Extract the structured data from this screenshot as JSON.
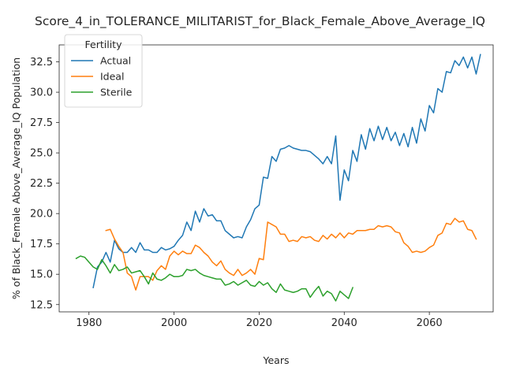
{
  "chart_data": {
    "type": "line",
    "title": "Score_4_in_TOLERANCE_MILITARIST_for_Black_Female_Above_Average_IQ",
    "xlabel": "Years",
    "ylabel": "% of Black_Female Above_Average_IQ Population",
    "xlim": [
      1973,
      2075
    ],
    "ylim": [
      11.9,
      33.9
    ],
    "xticks": [
      1980,
      2000,
      2020,
      2040,
      2060
    ],
    "yticks": [
      12.5,
      15.0,
      17.5,
      20.0,
      22.5,
      25.0,
      27.5,
      30.0,
      32.5
    ],
    "grid": false,
    "legend": {
      "title": "Fertility",
      "placement": "top-left"
    },
    "series": [
      {
        "name": "Actual",
        "color": "#1f77b4",
        "points": [
          [
            1981,
            13.9
          ],
          [
            1982,
            15.6
          ],
          [
            1983,
            16.0
          ],
          [
            1984,
            16.8
          ],
          [
            1985,
            16.0
          ],
          [
            1986,
            17.8
          ],
          [
            1987,
            17.1
          ],
          [
            1988,
            16.8
          ],
          [
            1989,
            16.8
          ],
          [
            1990,
            17.2
          ],
          [
            1991,
            16.8
          ],
          [
            1992,
            17.6
          ],
          [
            1993,
            17.0
          ],
          [
            1994,
            17.0
          ],
          [
            1995,
            16.8
          ],
          [
            1996,
            16.8
          ],
          [
            1997,
            17.2
          ],
          [
            1998,
            17.0
          ],
          [
            1999,
            17.1
          ],
          [
            2000,
            17.3
          ],
          [
            2001,
            17.8
          ],
          [
            2002,
            18.2
          ],
          [
            2003,
            19.3
          ],
          [
            2004,
            18.6
          ],
          [
            2005,
            20.2
          ],
          [
            2006,
            19.3
          ],
          [
            2007,
            20.4
          ],
          [
            2008,
            19.8
          ],
          [
            2009,
            19.9
          ],
          [
            2010,
            19.4
          ],
          [
            2011,
            19.4
          ],
          [
            2012,
            18.6
          ],
          [
            2013,
            18.3
          ],
          [
            2014,
            18.0
          ],
          [
            2015,
            18.1
          ],
          [
            2016,
            18.0
          ],
          [
            2017,
            18.9
          ],
          [
            2018,
            19.5
          ],
          [
            2019,
            20.4
          ],
          [
            2020,
            20.7
          ],
          [
            2021,
            23.0
          ],
          [
            2022,
            22.9
          ],
          [
            2023,
            24.7
          ],
          [
            2024,
            24.3
          ],
          [
            2025,
            25.3
          ],
          [
            2026,
            25.4
          ],
          [
            2027,
            25.6
          ],
          [
            2028,
            25.4
          ],
          [
            2029,
            25.3
          ],
          [
            2030,
            25.2
          ],
          [
            2031,
            25.2
          ],
          [
            2032,
            25.1
          ],
          [
            2033,
            24.8
          ],
          [
            2034,
            24.5
          ],
          [
            2035,
            24.1
          ],
          [
            2036,
            24.7
          ],
          [
            2037,
            24.1
          ],
          [
            2038,
            26.4
          ],
          [
            2039,
            21.1
          ],
          [
            2040,
            23.6
          ],
          [
            2041,
            22.7
          ],
          [
            2042,
            25.2
          ],
          [
            2043,
            24.3
          ],
          [
            2044,
            26.5
          ],
          [
            2045,
            25.3
          ],
          [
            2046,
            27.0
          ],
          [
            2047,
            26.0
          ],
          [
            2048,
            27.2
          ],
          [
            2049,
            26.1
          ],
          [
            2050,
            27.1
          ],
          [
            2051,
            26.0
          ],
          [
            2052,
            26.7
          ],
          [
            2053,
            25.6
          ],
          [
            2054,
            26.6
          ],
          [
            2055,
            25.5
          ],
          [
            2056,
            27.1
          ],
          [
            2057,
            25.8
          ],
          [
            2058,
            27.8
          ],
          [
            2059,
            26.8
          ],
          [
            2060,
            28.9
          ],
          [
            2061,
            28.3
          ],
          [
            2062,
            30.3
          ],
          [
            2063,
            30.0
          ],
          [
            2064,
            31.7
          ],
          [
            2065,
            31.6
          ],
          [
            2066,
            32.6
          ],
          [
            2067,
            32.2
          ],
          [
            2068,
            32.9
          ],
          [
            2069,
            32.0
          ],
          [
            2070,
            32.9
          ],
          [
            2071,
            31.5
          ],
          [
            2072,
            33.1
          ]
        ]
      },
      {
        "name": "Ideal",
        "color": "#ff7f0e",
        "points": [
          [
            1984,
            18.6
          ],
          [
            1985,
            18.7
          ],
          [
            1986,
            17.9
          ],
          [
            1987,
            17.3
          ],
          [
            1988,
            16.8
          ],
          [
            1989,
            15.1
          ],
          [
            1990,
            14.8
          ],
          [
            1991,
            13.7
          ],
          [
            1992,
            14.8
          ],
          [
            1993,
            14.8
          ],
          [
            1994,
            14.8
          ],
          [
            1995,
            14.5
          ],
          [
            1996,
            15.3
          ],
          [
            1997,
            15.7
          ],
          [
            1998,
            15.4
          ],
          [
            1999,
            16.5
          ],
          [
            2000,
            16.9
          ],
          [
            2001,
            16.6
          ],
          [
            2002,
            16.9
          ],
          [
            2003,
            16.7
          ],
          [
            2004,
            16.7
          ],
          [
            2005,
            17.4
          ],
          [
            2006,
            17.2
          ],
          [
            2007,
            16.8
          ],
          [
            2008,
            16.5
          ],
          [
            2009,
            16.0
          ],
          [
            2010,
            15.7
          ],
          [
            2011,
            16.1
          ],
          [
            2012,
            15.4
          ],
          [
            2013,
            15.1
          ],
          [
            2014,
            14.9
          ],
          [
            2015,
            15.4
          ],
          [
            2016,
            14.9
          ],
          [
            2017,
            15.1
          ],
          [
            2018,
            15.4
          ],
          [
            2019,
            15.0
          ],
          [
            2020,
            16.3
          ],
          [
            2021,
            16.2
          ],
          [
            2022,
            19.3
          ],
          [
            2023,
            19.1
          ],
          [
            2024,
            18.9
          ],
          [
            2025,
            18.3
          ],
          [
            2026,
            18.3
          ],
          [
            2027,
            17.7
          ],
          [
            2028,
            17.8
          ],
          [
            2029,
            17.7
          ],
          [
            2030,
            18.1
          ],
          [
            2031,
            18.0
          ],
          [
            2032,
            18.1
          ],
          [
            2033,
            17.8
          ],
          [
            2034,
            17.7
          ],
          [
            2035,
            18.2
          ],
          [
            2036,
            17.9
          ],
          [
            2037,
            18.3
          ],
          [
            2038,
            18.0
          ],
          [
            2039,
            18.4
          ],
          [
            2040,
            18.0
          ],
          [
            2041,
            18.4
          ],
          [
            2042,
            18.3
          ],
          [
            2043,
            18.6
          ],
          [
            2044,
            18.6
          ],
          [
            2045,
            18.6
          ],
          [
            2046,
            18.7
          ],
          [
            2047,
            18.7
          ],
          [
            2048,
            19.0
          ],
          [
            2049,
            18.9
          ],
          [
            2050,
            19.0
          ],
          [
            2051,
            18.9
          ],
          [
            2052,
            18.5
          ],
          [
            2053,
            18.4
          ],
          [
            2054,
            17.6
          ],
          [
            2055,
            17.3
          ],
          [
            2056,
            16.8
          ],
          [
            2057,
            16.9
          ],
          [
            2058,
            16.8
          ],
          [
            2059,
            16.9
          ],
          [
            2060,
            17.2
          ],
          [
            2061,
            17.4
          ],
          [
            2062,
            18.2
          ],
          [
            2063,
            18.4
          ],
          [
            2064,
            19.2
          ],
          [
            2065,
            19.1
          ],
          [
            2066,
            19.6
          ],
          [
            2067,
            19.3
          ],
          [
            2068,
            19.4
          ],
          [
            2069,
            18.7
          ],
          [
            2070,
            18.6
          ],
          [
            2071,
            17.9
          ]
        ]
      },
      {
        "name": "Sterile",
        "color": "#2ca02c",
        "points": [
          [
            1977,
            16.3
          ],
          [
            1978,
            16.5
          ],
          [
            1979,
            16.4
          ],
          [
            1980,
            16.0
          ],
          [
            1981,
            15.6
          ],
          [
            1982,
            15.4
          ],
          [
            1983,
            16.2
          ],
          [
            1984,
            15.7
          ],
          [
            1985,
            15.1
          ],
          [
            1986,
            15.8
          ],
          [
            1987,
            15.3
          ],
          [
            1988,
            15.4
          ],
          [
            1989,
            15.6
          ],
          [
            1990,
            15.1
          ],
          [
            1991,
            15.2
          ],
          [
            1992,
            15.3
          ],
          [
            1993,
            14.8
          ],
          [
            1994,
            14.2
          ],
          [
            1995,
            15.1
          ],
          [
            1996,
            14.6
          ],
          [
            1997,
            14.5
          ],
          [
            1998,
            14.7
          ],
          [
            1999,
            15.0
          ],
          [
            2000,
            14.8
          ],
          [
            2001,
            14.8
          ],
          [
            2002,
            14.9
          ],
          [
            2003,
            15.4
          ],
          [
            2004,
            15.3
          ],
          [
            2005,
            15.4
          ],
          [
            2006,
            15.1
          ],
          [
            2007,
            14.9
          ],
          [
            2008,
            14.8
          ],
          [
            2009,
            14.7
          ],
          [
            2010,
            14.6
          ],
          [
            2011,
            14.6
          ],
          [
            2012,
            14.1
          ],
          [
            2013,
            14.2
          ],
          [
            2014,
            14.4
          ],
          [
            2015,
            14.1
          ],
          [
            2016,
            14.3
          ],
          [
            2017,
            14.5
          ],
          [
            2018,
            14.1
          ],
          [
            2019,
            14.0
          ],
          [
            2020,
            14.4
          ],
          [
            2021,
            14.1
          ],
          [
            2022,
            14.3
          ],
          [
            2023,
            13.8
          ],
          [
            2024,
            13.5
          ],
          [
            2025,
            14.2
          ],
          [
            2026,
            13.7
          ],
          [
            2027,
            13.6
          ],
          [
            2028,
            13.5
          ],
          [
            2029,
            13.6
          ],
          [
            2030,
            13.8
          ],
          [
            2031,
            13.8
          ],
          [
            2032,
            13.1
          ],
          [
            2033,
            13.6
          ],
          [
            2034,
            14.0
          ],
          [
            2035,
            13.2
          ],
          [
            2036,
            13.6
          ],
          [
            2037,
            13.4
          ],
          [
            2038,
            12.8
          ],
          [
            2039,
            13.6
          ],
          [
            2040,
            13.3
          ],
          [
            2041,
            13.0
          ],
          [
            2042,
            13.9
          ]
        ]
      }
    ]
  }
}
